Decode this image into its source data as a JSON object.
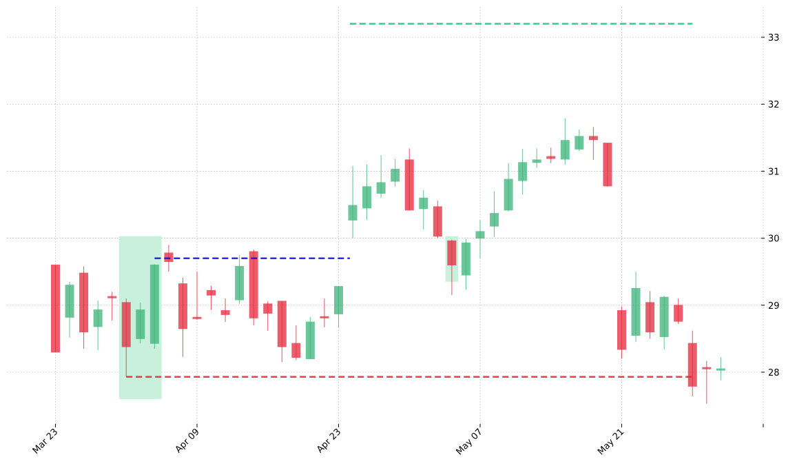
{
  "chart_data": {
    "type": "candlestick",
    "title": "",
    "xlabel": "",
    "ylabel": "",
    "ylim": [
      27.25,
      33.5
    ],
    "grid": true,
    "colors": {
      "up": "#3cb478",
      "down": "#e6283c",
      "highlight_zone": "#c8f0dc",
      "resistance_line": "#1ec882",
      "breakout_line": "#1414e6",
      "support_line": "#e6283c",
      "grid": "#b4b4b4"
    },
    "x_ticks": [
      {
        "label": "Mar 23",
        "index": 0
      },
      {
        "label": "Apr 09",
        "index": 10
      },
      {
        "label": "Apr 23",
        "index": 20
      },
      {
        "label": "May 07",
        "index": 30
      },
      {
        "label": "May 21",
        "index": 40
      },
      {
        "label": "",
        "index": 50
      }
    ],
    "y_ticks": [
      28,
      29,
      30,
      31,
      32,
      33
    ],
    "candles": [
      {
        "i": 0,
        "open": 29.6,
        "high": 29.6,
        "low": 28.3,
        "close": 28.3
      },
      {
        "i": 1,
        "open": 28.82,
        "high": 29.35,
        "low": 28.52,
        "close": 29.3
      },
      {
        "i": 2,
        "open": 29.48,
        "high": 29.58,
        "low": 28.35,
        "close": 28.6
      },
      {
        "i": 3,
        "open": 28.68,
        "high": 29.07,
        "low": 28.33,
        "close": 28.93
      },
      {
        "i": 4,
        "open": 29.13,
        "high": 29.2,
        "low": 28.77,
        "close": 29.11
      },
      {
        "i": 5,
        "open": 29.04,
        "high": 29.1,
        "low": 27.93,
        "close": 28.38
      },
      {
        "i": 6,
        "open": 28.5,
        "high": 29.04,
        "low": 28.43,
        "close": 28.93
      },
      {
        "i": 7,
        "open": 28.43,
        "high": 29.61,
        "low": 28.35,
        "close": 29.6
      },
      {
        "i": 8,
        "open": 29.78,
        "high": 29.9,
        "low": 29.5,
        "close": 29.65
      },
      {
        "i": 9,
        "open": 29.32,
        "high": 29.41,
        "low": 28.23,
        "close": 28.65
      },
      {
        "i": 10,
        "open": 28.82,
        "high": 29.5,
        "low": 28.78,
        "close": 28.8
      },
      {
        "i": 11,
        "open": 29.22,
        "high": 29.29,
        "low": 28.93,
        "close": 29.15
      },
      {
        "i": 12,
        "open": 28.92,
        "high": 29.1,
        "low": 28.75,
        "close": 28.86
      },
      {
        "i": 13,
        "open": 29.08,
        "high": 29.75,
        "low": 29.02,
        "close": 29.58
      },
      {
        "i": 14,
        "open": 29.8,
        "high": 29.83,
        "low": 28.7,
        "close": 28.81
      },
      {
        "i": 15,
        "open": 29.02,
        "high": 29.06,
        "low": 28.62,
        "close": 28.88
      },
      {
        "i": 16,
        "open": 29.06,
        "high": 29.06,
        "low": 28.15,
        "close": 28.38
      },
      {
        "i": 17,
        "open": 28.43,
        "high": 28.7,
        "low": 28.18,
        "close": 28.22
      },
      {
        "i": 18,
        "open": 28.2,
        "high": 28.82,
        "low": 28.2,
        "close": 28.75
      },
      {
        "i": 19,
        "open": 28.83,
        "high": 29.1,
        "low": 28.67,
        "close": 28.81
      },
      {
        "i": 20,
        "open": 28.87,
        "high": 29.28,
        "low": 28.67,
        "close": 29.28
      },
      {
        "i": 21,
        "open": 30.27,
        "high": 31.08,
        "low": 30.0,
        "close": 30.49
      },
      {
        "i": 22,
        "open": 30.45,
        "high": 31.1,
        "low": 30.27,
        "close": 30.77
      },
      {
        "i": 23,
        "open": 30.67,
        "high": 31.24,
        "low": 30.6,
        "close": 30.83
      },
      {
        "i": 24,
        "open": 30.85,
        "high": 31.18,
        "low": 30.77,
        "close": 31.03
      },
      {
        "i": 25,
        "open": 31.17,
        "high": 31.34,
        "low": 30.42,
        "close": 30.42
      },
      {
        "i": 26,
        "open": 30.44,
        "high": 30.72,
        "low": 30.13,
        "close": 30.6
      },
      {
        "i": 27,
        "open": 30.47,
        "high": 30.56,
        "low": 30.0,
        "close": 30.03
      },
      {
        "i": 28,
        "open": 29.96,
        "high": 29.98,
        "low": 29.15,
        "close": 29.6
      },
      {
        "i": 29,
        "open": 29.45,
        "high": 29.99,
        "low": 29.23,
        "close": 29.93
      },
      {
        "i": 30,
        "open": 30.0,
        "high": 30.27,
        "low": 29.7,
        "close": 30.1
      },
      {
        "i": 31,
        "open": 30.18,
        "high": 30.7,
        "low": 30.02,
        "close": 30.37
      },
      {
        "i": 32,
        "open": 30.42,
        "high": 31.12,
        "low": 30.4,
        "close": 30.88
      },
      {
        "i": 33,
        "open": 30.86,
        "high": 31.33,
        "low": 30.65,
        "close": 31.13
      },
      {
        "i": 34,
        "open": 31.13,
        "high": 31.34,
        "low": 31.05,
        "close": 31.17
      },
      {
        "i": 35,
        "open": 31.22,
        "high": 31.35,
        "low": 31.12,
        "close": 31.19
      },
      {
        "i": 36,
        "open": 31.18,
        "high": 31.79,
        "low": 31.1,
        "close": 31.46
      },
      {
        "i": 37,
        "open": 31.33,
        "high": 31.62,
        "low": 31.3,
        "close": 31.52
      },
      {
        "i": 38,
        "open": 31.52,
        "high": 31.66,
        "low": 31.17,
        "close": 31.47
      },
      {
        "i": 39,
        "open": 31.42,
        "high": 31.42,
        "low": 30.77,
        "close": 30.78
      },
      {
        "i": 40,
        "open": 28.92,
        "high": 28.98,
        "low": 28.2,
        "close": 28.34
      },
      {
        "i": 41,
        "open": 28.55,
        "high": 29.5,
        "low": 28.45,
        "close": 29.25
      },
      {
        "i": 42,
        "open": 29.04,
        "high": 29.21,
        "low": 28.5,
        "close": 28.6
      },
      {
        "i": 43,
        "open": 28.53,
        "high": 29.14,
        "low": 28.34,
        "close": 29.12
      },
      {
        "i": 44,
        "open": 29.0,
        "high": 29.1,
        "low": 28.72,
        "close": 28.76
      },
      {
        "i": 45,
        "open": 28.43,
        "high": 28.62,
        "low": 27.64,
        "close": 27.79
      },
      {
        "i": 46,
        "open": 28.07,
        "high": 28.17,
        "low": 27.53,
        "close": 28.06
      },
      {
        "i": 47,
        "open": 28.03,
        "high": 28.22,
        "low": 27.88,
        "close": 28.05
      }
    ],
    "zones": [
      {
        "name": "pattern-zone",
        "x_start": 4.5,
        "x_end": 7.5,
        "y_low": 27.6,
        "y_high": 30.03
      },
      {
        "name": "pattern-zone",
        "x_start": 27.55,
        "x_end": 28.45,
        "y_low": 29.35,
        "y_high": 30.03
      }
    ],
    "lines": [
      {
        "name": "resistance-line",
        "x_start": 20.8,
        "x_end": 45.0,
        "y": 33.2,
        "color_key": "resistance_line"
      },
      {
        "name": "breakout-line",
        "x_start": 7.0,
        "x_end": 20.8,
        "y": 29.7,
        "color_key": "breakout_line"
      },
      {
        "name": "support-line",
        "x_start": 5.0,
        "x_end": 45.0,
        "y": 27.93,
        "color_key": "support_line"
      }
    ]
  }
}
